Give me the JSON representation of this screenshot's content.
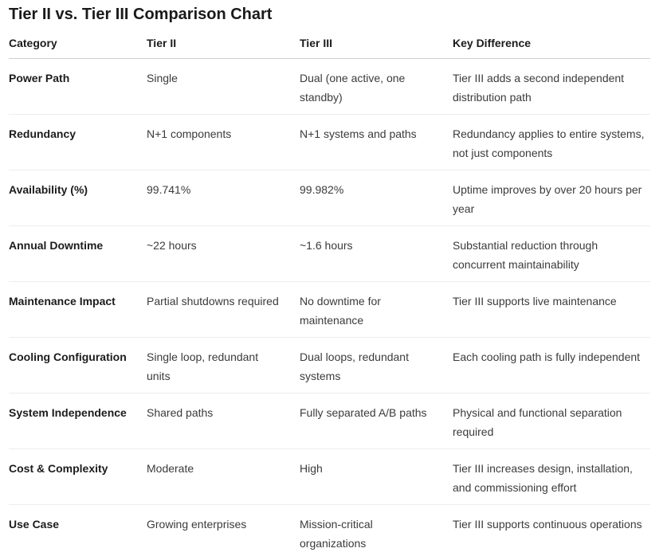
{
  "chart_data": {
    "type": "table",
    "title": "Tier II vs. Tier III Comparison Chart",
    "columns": [
      "Category",
      "Tier II",
      "Tier III",
      "Key Difference"
    ],
    "rows": [
      [
        "Power Path",
        "Single",
        "Dual (one active, one standby)",
        "Tier III adds a second independent distribution path"
      ],
      [
        "Redundancy",
        "N+1 components",
        "N+1 systems and paths",
        "Redundancy applies to entire systems, not just components"
      ],
      [
        "Availability (%)",
        "99.741%",
        "99.982%",
        "Uptime improves by over 20 hours per year"
      ],
      [
        "Annual Downtime",
        "~22 hours",
        "~1.6 hours",
        "Substantial reduction through concurrent maintainability"
      ],
      [
        "Maintenance Impact",
        "Partial shutdowns required",
        "No downtime for maintenance",
        "Tier III supports live maintenance"
      ],
      [
        "Cooling Configuration",
        "Single loop, redundant units",
        "Dual loops, redundant systems",
        "Each cooling path is fully independent"
      ],
      [
        "System Independence",
        "Shared paths",
        "Fully separated A/B paths",
        "Physical and functional separation required"
      ],
      [
        "Cost & Complexity",
        "Moderate",
        "High",
        "Tier III increases design, installation, and commissioning effort"
      ],
      [
        "Use Case",
        "Growing enterprises",
        "Mission-critical organizations",
        "Tier III supports continuous operations"
      ]
    ]
  },
  "colors": {
    "background": "#ffffff",
    "title_text": "#1a1a1a",
    "header_text": "#1b1b1b",
    "body_text": "#3b3b3b",
    "header_divider": "#cfcfcf",
    "row_divider": "#ededed"
  }
}
